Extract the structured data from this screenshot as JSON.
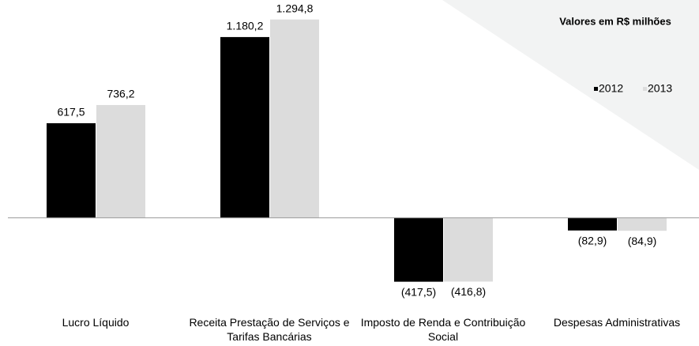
{
  "chart_data": {
    "type": "bar",
    "annotation": "Valores em R$ milhões",
    "categories": [
      "Lucro Líquido",
      "Receita Prestação de Serviços e Tarifas Bancárias",
      "Imposto de Renda e Contribuição Social",
      "Despesas Administrativas"
    ],
    "series": [
      {
        "name": "2012",
        "color": "#000000",
        "values": [
          617.5,
          1180.2,
          -417.5,
          -82.9
        ],
        "value_labels": [
          "617,5",
          "1.180,2",
          "(417,5)",
          "(82,9)"
        ]
      },
      {
        "name": "2013",
        "color": "#dcdcdc",
        "values": [
          736.2,
          1294.8,
          -416.8,
          -84.9
        ],
        "value_labels": [
          "736,2",
          "1.294,8",
          "(416,8)",
          "(84,9)"
        ]
      }
    ],
    "ylim": [
      -600,
      1350
    ],
    "grid": false,
    "legend": "upper right"
  }
}
